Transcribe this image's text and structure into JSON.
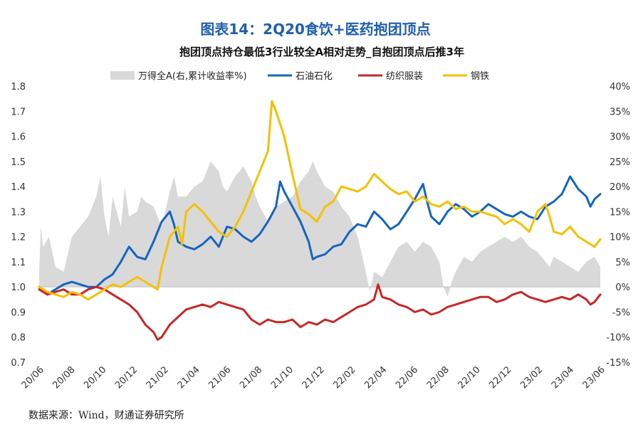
{
  "chart_data": {
    "type": "line",
    "title": "图表14：2Q20食饮+医药抱团顶点",
    "subtitle": "抱团顶点持仓最低3行业较全A相对走势_自抱团顶点后推3年",
    "source": "数据来源：Wind，财通证券研究所",
    "x_ticks": [
      "20/06",
      "20/08",
      "20/10",
      "20/12",
      "21/02",
      "21/04",
      "21/06",
      "21/08",
      "21/10",
      "21/12",
      "22/02",
      "22/04",
      "22/06",
      "22/08",
      "22/10",
      "22/12",
      "23/02",
      "23/04",
      "23/06"
    ],
    "y_left": {
      "range": [
        0.7,
        1.8
      ],
      "ticks": [
        "0.7",
        "0.8",
        "0.9",
        "1.0",
        "1.1",
        "1.2",
        "1.3",
        "1.4",
        "1.5",
        "1.6",
        "1.7",
        "1.8"
      ]
    },
    "y_right": {
      "range": [
        -15,
        40
      ],
      "ticks": [
        "-15%",
        "-10%",
        "-5%",
        "0%",
        "5%",
        "10%",
        "15%",
        "20%",
        "25%",
        "30%",
        "35%",
        "40%"
      ]
    },
    "colors": {
      "area": "#d9d9d9",
      "petro": "#1565c0",
      "textile": "#c62828",
      "steel": "#f5c000"
    },
    "series": [
      {
        "name": "万得全A(右,累计收益率%)",
        "axis": "right",
        "kind": "area",
        "points": [
          [
            0,
            3
          ],
          [
            0.2,
            12
          ],
          [
            0.5,
            8
          ],
          [
            1.2,
            10
          ],
          [
            2,
            4
          ],
          [
            3,
            3
          ],
          [
            4,
            10
          ],
          [
            5,
            12
          ],
          [
            6,
            14
          ],
          [
            7,
            18
          ],
          [
            7.5,
            22
          ],
          [
            8,
            14
          ],
          [
            8.5,
            10
          ],
          [
            9,
            18
          ],
          [
            10,
            12
          ],
          [
            10.5,
            20
          ],
          [
            11,
            14
          ],
          [
            12,
            15
          ],
          [
            12.5,
            18
          ],
          [
            13,
            17
          ],
          [
            14,
            16
          ],
          [
            15,
            12
          ],
          [
            16,
            19
          ],
          [
            16.5,
            22
          ],
          [
            17,
            18
          ],
          [
            18,
            18
          ],
          [
            19,
            20
          ],
          [
            20,
            21
          ],
          [
            21,
            25
          ],
          [
            22,
            23
          ],
          [
            22.5,
            20
          ],
          [
            23,
            19
          ],
          [
            24,
            22
          ],
          [
            25,
            24
          ],
          [
            26,
            21
          ],
          [
            26.5,
            18
          ],
          [
            27,
            16
          ],
          [
            28,
            13
          ],
          [
            29,
            16
          ],
          [
            30,
            17
          ],
          [
            31,
            18
          ],
          [
            32,
            21
          ],
          [
            33,
            23
          ],
          [
            33.5,
            25
          ],
          [
            34,
            23
          ],
          [
            35,
            20
          ],
          [
            36,
            19
          ],
          [
            37,
            16
          ],
          [
            38,
            14
          ],
          [
            39,
            10
          ],
          [
            40,
            3
          ],
          [
            40.5,
            -1
          ],
          [
            41,
            3
          ],
          [
            42,
            2
          ],
          [
            43,
            5
          ],
          [
            44,
            8
          ],
          [
            45,
            9
          ],
          [
            46,
            7
          ],
          [
            47,
            9
          ],
          [
            48,
            8
          ],
          [
            49,
            5
          ],
          [
            49.5,
            0
          ],
          [
            50,
            -2
          ],
          [
            50.5,
            1
          ],
          [
            51,
            3
          ],
          [
            52,
            6
          ],
          [
            53,
            5
          ],
          [
            54,
            7
          ],
          [
            55,
            8
          ],
          [
            56,
            9
          ],
          [
            57,
            10
          ],
          [
            58,
            9
          ],
          [
            59,
            10
          ],
          [
            60,
            8
          ],
          [
            61,
            7
          ],
          [
            62,
            5
          ],
          [
            62.5,
            4
          ],
          [
            63,
            6
          ],
          [
            64,
            5
          ],
          [
            65,
            4
          ],
          [
            66,
            3
          ],
          [
            67,
            5
          ],
          [
            68,
            6
          ],
          [
            68.7,
            4
          ]
        ]
      },
      {
        "name": "石油石化",
        "axis": "left",
        "kind": "line",
        "points": [
          [
            0,
            1.0
          ],
          [
            1,
            0.97
          ],
          [
            2,
            0.99
          ],
          [
            3,
            1.01
          ],
          [
            4,
            1.02
          ],
          [
            5,
            1.01
          ],
          [
            6,
            1.0
          ],
          [
            7,
            1.0
          ],
          [
            8,
            1.03
          ],
          [
            9,
            1.05
          ],
          [
            10,
            1.1
          ],
          [
            11,
            1.16
          ],
          [
            12,
            1.12
          ],
          [
            13,
            1.11
          ],
          [
            14,
            1.18
          ],
          [
            15,
            1.26
          ],
          [
            16,
            1.3
          ],
          [
            16.5,
            1.25
          ],
          [
            17,
            1.18
          ],
          [
            18,
            1.16
          ],
          [
            19,
            1.15
          ],
          [
            20,
            1.17
          ],
          [
            21,
            1.2
          ],
          [
            22,
            1.16
          ],
          [
            23,
            1.24
          ],
          [
            24,
            1.23
          ],
          [
            25,
            1.2
          ],
          [
            26,
            1.18
          ],
          [
            27,
            1.21
          ],
          [
            28,
            1.26
          ],
          [
            29,
            1.32
          ],
          [
            29.5,
            1.42
          ],
          [
            30,
            1.38
          ],
          [
            31,
            1.32
          ],
          [
            32,
            1.26
          ],
          [
            33,
            1.18
          ],
          [
            33.5,
            1.11
          ],
          [
            34,
            1.12
          ],
          [
            35,
            1.13
          ],
          [
            36,
            1.16
          ],
          [
            37,
            1.17
          ],
          [
            38,
            1.22
          ],
          [
            39,
            1.25
          ],
          [
            40,
            1.24
          ],
          [
            41,
            1.3
          ],
          [
            42,
            1.27
          ],
          [
            43,
            1.23
          ],
          [
            44,
            1.25
          ],
          [
            45,
            1.3
          ],
          [
            46,
            1.35
          ],
          [
            47,
            1.41
          ],
          [
            47.5,
            1.34
          ],
          [
            48,
            1.28
          ],
          [
            49,
            1.25
          ],
          [
            50,
            1.3
          ],
          [
            51,
            1.33
          ],
          [
            52,
            1.31
          ],
          [
            53,
            1.28
          ],
          [
            54,
            1.3
          ],
          [
            55,
            1.33
          ],
          [
            56,
            1.31
          ],
          [
            57,
            1.29
          ],
          [
            58,
            1.28
          ],
          [
            59,
            1.3
          ],
          [
            60,
            1.28
          ],
          [
            61,
            1.27
          ],
          [
            62,
            1.32
          ],
          [
            63,
            1.34
          ],
          [
            64,
            1.37
          ],
          [
            65,
            1.44
          ],
          [
            66,
            1.39
          ],
          [
            67,
            1.36
          ],
          [
            67.5,
            1.32
          ],
          [
            68,
            1.35
          ],
          [
            68.7,
            1.37
          ]
        ]
      },
      {
        "name": "纺织服装",
        "axis": "left",
        "kind": "line",
        "points": [
          [
            0,
            0.99
          ],
          [
            1,
            0.97
          ],
          [
            2,
            0.98
          ],
          [
            3,
            0.99
          ],
          [
            4,
            0.97
          ],
          [
            5,
            0.97
          ],
          [
            6,
            0.99
          ],
          [
            7,
            1.0
          ],
          [
            8,
            0.99
          ],
          [
            9,
            0.97
          ],
          [
            10,
            0.95
          ],
          [
            11,
            0.93
          ],
          [
            12,
            0.9
          ],
          [
            13,
            0.85
          ],
          [
            14,
            0.82
          ],
          [
            14.5,
            0.79
          ],
          [
            15,
            0.8
          ],
          [
            16,
            0.85
          ],
          [
            17,
            0.88
          ],
          [
            18,
            0.91
          ],
          [
            19,
            0.92
          ],
          [
            20,
            0.93
          ],
          [
            21,
            0.92
          ],
          [
            22,
            0.94
          ],
          [
            23,
            0.93
          ],
          [
            24,
            0.92
          ],
          [
            25,
            0.91
          ],
          [
            26,
            0.87
          ],
          [
            27,
            0.85
          ],
          [
            28,
            0.87
          ],
          [
            29,
            0.86
          ],
          [
            30,
            0.86
          ],
          [
            31,
            0.87
          ],
          [
            32,
            0.84
          ],
          [
            33,
            0.86
          ],
          [
            34,
            0.85
          ],
          [
            35,
            0.87
          ],
          [
            36,
            0.86
          ],
          [
            37,
            0.88
          ],
          [
            38,
            0.9
          ],
          [
            39,
            0.92
          ],
          [
            40,
            0.93
          ],
          [
            41,
            0.95
          ],
          [
            41.5,
            1.01
          ],
          [
            42,
            0.96
          ],
          [
            43,
            0.95
          ],
          [
            44,
            0.93
          ],
          [
            45,
            0.92
          ],
          [
            46,
            0.9
          ],
          [
            47,
            0.91
          ],
          [
            48,
            0.89
          ],
          [
            49,
            0.9
          ],
          [
            50,
            0.92
          ],
          [
            51,
            0.93
          ],
          [
            52,
            0.94
          ],
          [
            53,
            0.95
          ],
          [
            54,
            0.96
          ],
          [
            55,
            0.96
          ],
          [
            56,
            0.94
          ],
          [
            57,
            0.95
          ],
          [
            58,
            0.97
          ],
          [
            59,
            0.98
          ],
          [
            60,
            0.96
          ],
          [
            61,
            0.95
          ],
          [
            62,
            0.94
          ],
          [
            63,
            0.95
          ],
          [
            64,
            0.96
          ],
          [
            65,
            0.95
          ],
          [
            66,
            0.97
          ],
          [
            67,
            0.95
          ],
          [
            67.5,
            0.93
          ],
          [
            68,
            0.94
          ],
          [
            68.7,
            0.97
          ]
        ]
      },
      {
        "name": "钢铁",
        "axis": "left",
        "kind": "line",
        "points": [
          [
            0,
            1.0
          ],
          [
            1,
            0.98
          ],
          [
            2,
            0.97
          ],
          [
            3,
            0.96
          ],
          [
            4,
            0.98
          ],
          [
            5,
            0.97
          ],
          [
            6,
            0.95
          ],
          [
            7,
            0.97
          ],
          [
            8,
            0.99
          ],
          [
            9,
            1.01
          ],
          [
            10,
            1.0
          ],
          [
            11,
            1.02
          ],
          [
            12,
            1.04
          ],
          [
            13,
            1.02
          ],
          [
            14,
            1.0
          ],
          [
            14.5,
            0.99
          ],
          [
            15,
            1.08
          ],
          [
            16,
            1.2
          ],
          [
            17,
            1.24
          ],
          [
            17.5,
            1.17
          ],
          [
            18,
            1.3
          ],
          [
            19,
            1.33
          ],
          [
            20,
            1.3
          ],
          [
            21,
            1.26
          ],
          [
            22,
            1.22
          ],
          [
            23,
            1.2
          ],
          [
            24,
            1.24
          ],
          [
            25,
            1.3
          ],
          [
            26,
            1.38
          ],
          [
            27,
            1.46
          ],
          [
            28,
            1.54
          ],
          [
            28.5,
            1.74
          ],
          [
            29,
            1.7
          ],
          [
            30,
            1.6
          ],
          [
            31,
            1.45
          ],
          [
            32,
            1.31
          ],
          [
            33,
            1.29
          ],
          [
            34,
            1.26
          ],
          [
            35,
            1.32
          ],
          [
            36,
            1.34
          ],
          [
            37,
            1.4
          ],
          [
            38,
            1.39
          ],
          [
            39,
            1.38
          ],
          [
            40,
            1.4
          ],
          [
            41,
            1.45
          ],
          [
            42,
            1.42
          ],
          [
            43,
            1.39
          ],
          [
            44,
            1.37
          ],
          [
            45,
            1.38
          ],
          [
            46,
            1.34
          ],
          [
            47,
            1.36
          ],
          [
            48,
            1.33
          ],
          [
            49,
            1.32
          ],
          [
            50,
            1.34
          ],
          [
            51,
            1.31
          ],
          [
            52,
            1.32
          ],
          [
            53,
            1.3
          ],
          [
            54,
            1.3
          ],
          [
            55,
            1.29
          ],
          [
            56,
            1.28
          ],
          [
            57,
            1.25
          ],
          [
            58,
            1.27
          ],
          [
            59,
            1.25
          ],
          [
            60,
            1.22
          ],
          [
            61,
            1.3
          ],
          [
            62,
            1.33
          ],
          [
            62.5,
            1.28
          ],
          [
            63,
            1.22
          ],
          [
            64,
            1.21
          ],
          [
            65,
            1.24
          ],
          [
            66,
            1.2
          ],
          [
            67,
            1.18
          ],
          [
            67.5,
            1.17
          ],
          [
            68,
            1.16
          ],
          [
            68.7,
            1.19
          ]
        ]
      }
    ]
  }
}
